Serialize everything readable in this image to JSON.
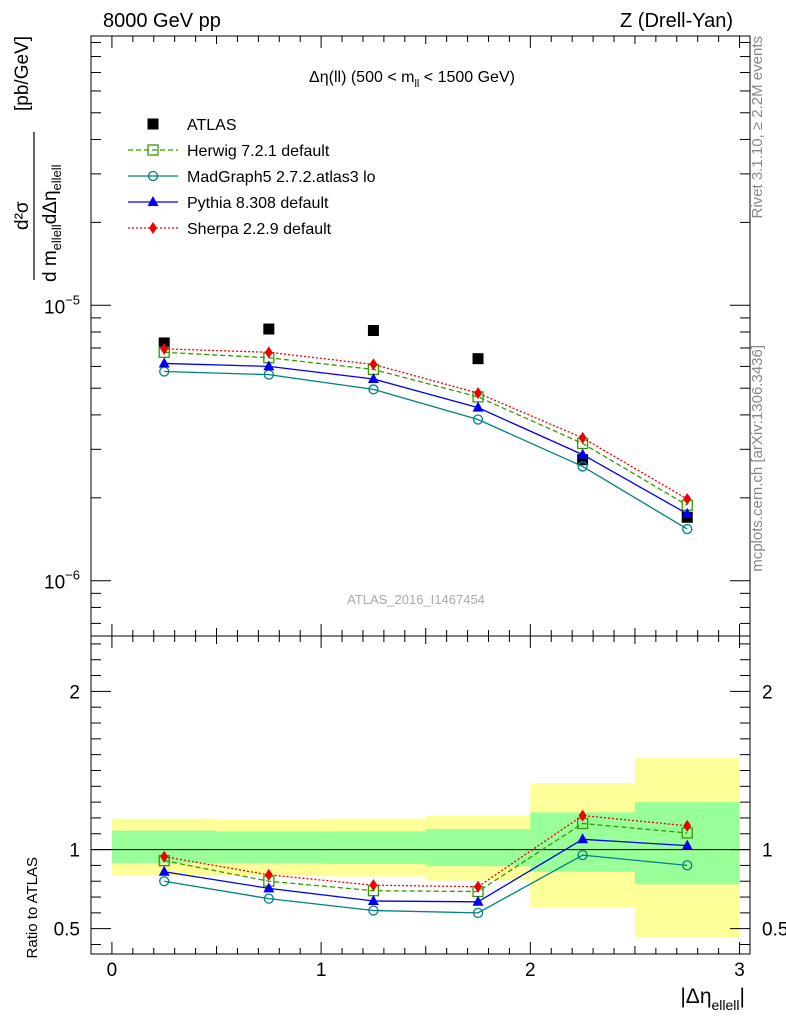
{
  "header": {
    "beam": "8000 GeV pp",
    "process": "Z (Drell-Yan)"
  },
  "side_labels": {
    "rivet": "Rivet 3.1.10, ≥ 2.2M events",
    "source": "mcplots.cern.ch [arXiv:1306.3436]"
  },
  "analysis_id": "ATLAS_2016_I1467454",
  "colors": {
    "atlas": "#000000",
    "herwig": "#339900",
    "madgraph": "#008080",
    "pythia": "#0000ee",
    "sherpa": "#ee0000",
    "band_inner": "#99ff99",
    "band_outer": "#ffff99"
  },
  "chart_data": [
    {
      "type": "scatter",
      "panel": "main",
      "title": "Δη(ll) (500 < m_ll < 1500 GeV)",
      "title_parts": {
        "pre": "Δη(ll) (500 < m",
        "sub": "ll",
        "post": " < 1500 GeV)"
      },
      "ylabel_parts": {
        "num": "d²σ",
        "den1": "d m",
        "den_sub1": "ellell",
        "den2": "dΔη",
        "den_sub2": "ellell",
        "unit": "[pb/GeV]"
      },
      "yscale": "log",
      "ylim": [
        6.3e-07,
        9.5e-05
      ],
      "xlim": [
        -0.1,
        3.05
      ],
      "y_tick_labels": [
        {
          "mantissa": "10",
          "exponent": "−5",
          "value": 1e-05
        },
        {
          "mantissa": "10",
          "exponent": "−6",
          "value": 1e-06
        }
      ],
      "legend_position": "top-left",
      "x": [
        0.25,
        0.75,
        1.25,
        1.75,
        2.25,
        2.75
      ],
      "series": [
        {
          "key": "atlas",
          "name": "ATLAS",
          "values": [
            7.3e-06,
            8.2e-06,
            8.1e-06,
            6.4e-06,
            2.75e-06,
            1.7e-06
          ]
        },
        {
          "key": "herwig",
          "name": "Herwig 7.2.1 default",
          "values": [
            6.75e-06,
            6.45e-06,
            5.85e-06,
            4.65e-06,
            3.15e-06,
            1.88e-06
          ]
        },
        {
          "key": "madgraph",
          "name": "MadGraph5 2.7.2.atlas3 lo",
          "values": [
            5.75e-06,
            5.6e-06,
            4.95e-06,
            3.85e-06,
            2.6e-06,
            1.54e-06
          ]
        },
        {
          "key": "pythia",
          "name": "Pythia 8.308 default",
          "values": [
            6.15e-06,
            6e-06,
            5.4e-06,
            4.25e-06,
            2.87e-06,
            1.75e-06
          ]
        },
        {
          "key": "sherpa",
          "name": "Sherpa 2.2.9 default",
          "values": [
            6.95e-06,
            6.75e-06,
            6.1e-06,
            4.8e-06,
            3.3e-06,
            1.98e-06
          ]
        }
      ]
    },
    {
      "type": "line",
      "panel": "ratio",
      "ylabel": "Ratio to ATLAS",
      "xlabel_parts": {
        "pre": "|Δη",
        "sub": "ellell",
        "post": "|"
      },
      "xlim": [
        -0.1,
        3.05
      ],
      "ylim": [
        0.34,
        2.35
      ],
      "x_ticks": [
        0,
        1,
        2,
        3
      ],
      "x_tick_labels": [
        "0",
        "1",
        "2",
        "3"
      ],
      "y_ticks": [
        0.5,
        1,
        2
      ],
      "y_tick_labels": [
        "0.5",
        "1",
        "2"
      ],
      "bins": [
        [
          0,
          0.5
        ],
        [
          0.5,
          1.0
        ],
        [
          1.0,
          1.5
        ],
        [
          1.5,
          2.0
        ],
        [
          2.0,
          2.5
        ],
        [
          2.5,
          3.0
        ]
      ],
      "band_inner": [
        [
          0.915,
          1.12
        ],
        [
          0.915,
          1.115
        ],
        [
          0.91,
          1.115
        ],
        [
          0.895,
          1.13
        ],
        [
          0.86,
          1.235
        ],
        [
          0.78,
          1.3
        ]
      ],
      "band_outer": [
        [
          0.835,
          1.195
        ],
        [
          0.835,
          1.19
        ],
        [
          0.83,
          1.195
        ],
        [
          0.805,
          1.215
        ],
        [
          0.635,
          1.42
        ],
        [
          0.445,
          1.58
        ]
      ],
      "x": [
        0.25,
        0.75,
        1.25,
        1.75,
        2.25,
        2.75
      ],
      "series": [
        {
          "key": "herwig",
          "name": "Herwig 7.2.1 default",
          "values": [
            0.93,
            0.8,
            0.74,
            0.735,
            1.165,
            1.105
          ]
        },
        {
          "key": "madgraph",
          "name": "MadGraph5 2.7.2.atlas3 lo",
          "values": [
            0.8,
            0.69,
            0.615,
            0.6,
            0.965,
            0.9
          ]
        },
        {
          "key": "pythia",
          "name": "Pythia 8.308 default",
          "values": [
            0.86,
            0.755,
            0.675,
            0.67,
            1.065,
            1.025
          ]
        },
        {
          "key": "sherpa",
          "name": "Sherpa 2.2.9 default",
          "values": [
            0.955,
            0.84,
            0.775,
            0.765,
            1.215,
            1.15
          ]
        }
      ]
    }
  ]
}
